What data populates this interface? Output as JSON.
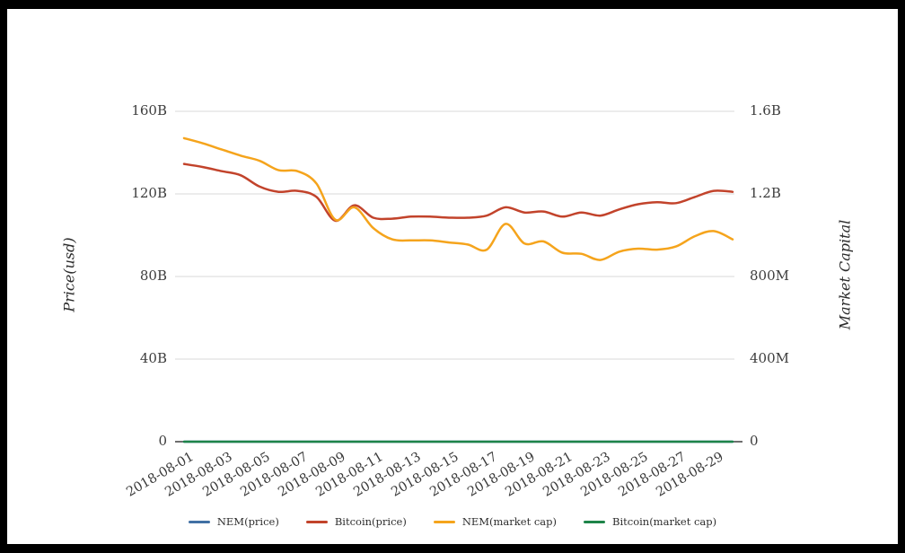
{
  "frame": {
    "border_color": "#000000",
    "canvas_background": "#ffffff",
    "gridline_color": "#d9d9d9",
    "axisline_color": "#3f3f3f",
    "tick_text_color": "#3a3a3a"
  },
  "chart_data": {
    "type": "line",
    "title": "",
    "ylabel_left": "Price(usd)",
    "ylabel_right": "Market Capital",
    "grid": true,
    "legend_position": "bottom",
    "x": [
      "2018-08-01",
      "2018-08-02",
      "2018-08-03",
      "2018-08-04",
      "2018-08-05",
      "2018-08-06",
      "2018-08-07",
      "2018-08-08",
      "2018-08-09",
      "2018-08-10",
      "2018-08-11",
      "2018-08-12",
      "2018-08-13",
      "2018-08-14",
      "2018-08-15",
      "2018-08-16",
      "2018-08-17",
      "2018-08-18",
      "2018-08-19",
      "2018-08-20",
      "2018-08-21",
      "2018-08-22",
      "2018-08-23",
      "2018-08-24",
      "2018-08-25",
      "2018-08-26",
      "2018-08-27",
      "2018-08-28",
      "2018-08-29",
      "2018-08-30"
    ],
    "x_tick_labels": [
      "2018-08-01",
      "2018-08-03",
      "2018-08-05",
      "2018-08-07",
      "2018-08-09",
      "2018-08-11",
      "2018-08-13",
      "2018-08-15",
      "2018-08-17",
      "2018-08-19",
      "2018-08-21",
      "2018-08-23",
      "2018-08-25",
      "2018-08-27",
      "2018-08-29"
    ],
    "left_axis": {
      "unit": "USD billions",
      "range": [
        0,
        160
      ],
      "ticks": [
        {
          "v": 0,
          "label": "0"
        },
        {
          "v": 40,
          "label": "40B"
        },
        {
          "v": 80,
          "label": "80B"
        },
        {
          "v": 120,
          "label": "120B"
        },
        {
          "v": 160,
          "label": "160B"
        }
      ]
    },
    "right_axis": {
      "unit": "USD billions",
      "range": [
        0,
        1.6
      ],
      "ticks": [
        {
          "v": 0,
          "label": "0"
        },
        {
          "v": 0.4,
          "label": "400M"
        },
        {
          "v": 0.8,
          "label": "800M"
        },
        {
          "v": 1.2,
          "label": "1.2B"
        },
        {
          "v": 1.6,
          "label": "1.6B"
        }
      ]
    },
    "series": [
      {
        "name": "NEM(price)",
        "color": "#4170a4",
        "axis": "left",
        "values": [
          0,
          0,
          0,
          0,
          0,
          0,
          0,
          0,
          0,
          0,
          0,
          0,
          0,
          0,
          0,
          0,
          0,
          0,
          0,
          0,
          0,
          0,
          0,
          0,
          0,
          0,
          0,
          0,
          0,
          0
        ]
      },
      {
        "name": "Bitcoin(price)",
        "color": "#c2432b",
        "axis": "left",
        "values": [
          134.5,
          133,
          131,
          129,
          123.5,
          121,
          121.5,
          118.5,
          107,
          114.5,
          108.5,
          108,
          109,
          109,
          108.5,
          108.5,
          109.5,
          113.5,
          111,
          111.5,
          109,
          111,
          109.5,
          112.5,
          115,
          116,
          115.5,
          118.5,
          121.5,
          121
        ]
      },
      {
        "name": "NEM(market cap)",
        "color": "#f5a41c",
        "axis": "right",
        "values": [
          1.47,
          1.445,
          1.415,
          1.385,
          1.36,
          1.315,
          1.31,
          1.25,
          1.075,
          1.135,
          1.035,
          0.98,
          0.975,
          0.975,
          0.965,
          0.955,
          0.93,
          1.055,
          0.96,
          0.97,
          0.915,
          0.91,
          0.88,
          0.92,
          0.935,
          0.93,
          0.945,
          0.995,
          1.02,
          0.98
        ]
      },
      {
        "name": "Bitcoin(market cap)",
        "color": "#1e8449",
        "axis": "right",
        "values": [
          0,
          0,
          0,
          0,
          0,
          0,
          0,
          0,
          0,
          0,
          0,
          0,
          0,
          0,
          0,
          0,
          0,
          0,
          0,
          0,
          0,
          0,
          0,
          0,
          0,
          0,
          0,
          0,
          0,
          0
        ]
      }
    ]
  }
}
